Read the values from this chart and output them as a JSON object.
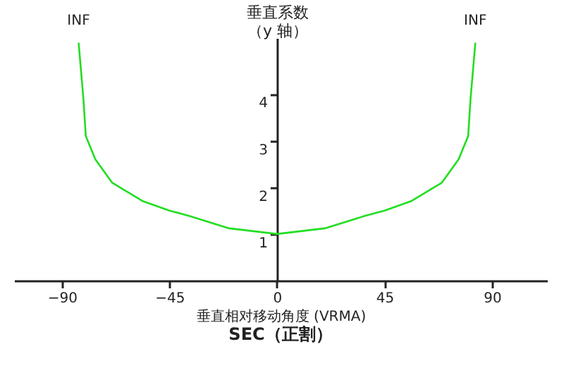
{
  "chart_data": {
    "type": "line",
    "title": "SEC（正割）",
    "xlabel": "垂直相对移动角度 (VRMA)",
    "ylabel": "垂直系数（y 轴）",
    "x": [
      -83,
      -81,
      -80,
      -76,
      -69,
      -56,
      -45,
      -37,
      -20,
      0,
      20,
      37,
      45,
      56,
      69,
      76,
      80,
      81,
      83
    ],
    "series": [
      {
        "color": "#22dd22",
        "values": [
          5.1,
          3.9,
          3.1,
          2.6,
          2.1,
          1.7,
          1.5,
          1.39,
          1.12,
          1,
          1.12,
          1.39,
          1.5,
          1.7,
          2.1,
          2.6,
          3.1,
          3.9,
          5.1
        ]
      }
    ],
    "xlim": [
      -110,
      113
    ],
    "ylim": [
      0,
      5.2
    ],
    "xticks": [
      -90,
      -45,
      0,
      45,
      90
    ],
    "yticks": [
      1,
      2,
      3,
      4
    ],
    "annotations": [
      {
        "text": "INF",
        "x": -83,
        "y": 5.1
      },
      {
        "text": "INF",
        "x": 83,
        "y": 5.1
      }
    ],
    "grid": false,
    "marker": "none",
    "line_style": "solid"
  }
}
